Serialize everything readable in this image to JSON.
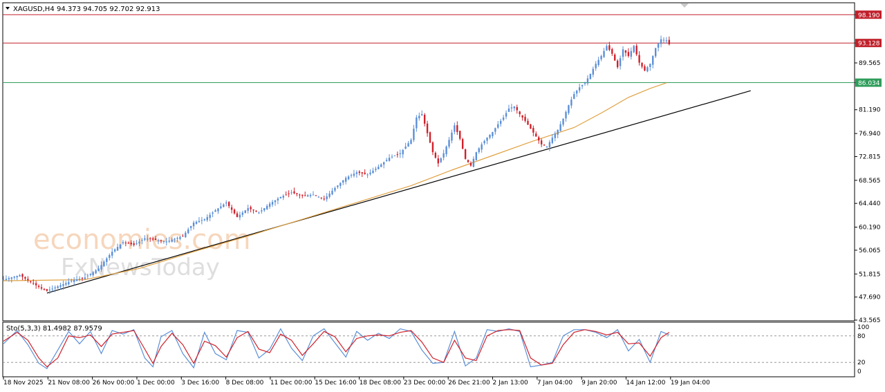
{
  "header": {
    "symbol": "XAGUSD,H4",
    "ohlc": "94.373 94.705 92.702 92.913"
  },
  "watermark": {
    "line1": "economies.com",
    "line2": "FxNewsToday"
  },
  "colors": {
    "bull": "#5b8fd6",
    "bear": "#d0202a",
    "ma": "#e0a040",
    "trend": "#000000",
    "resistance": "#c0202a",
    "support": "#2e9d5a",
    "stoch_main": "#5b8fd6",
    "stoch_signal": "#d0202a"
  },
  "chart_data": {
    "type": "candlestick",
    "symbol": "XAGUSD",
    "timeframe": "H4",
    "ylim": [
      43.565,
      100.2
    ],
    "y_ticks": [
      "98.190",
      "93.128",
      "89.565",
      "86.034",
      "81.190",
      "76.940",
      "72.815",
      "68.565",
      "64.440",
      "60.190",
      "56.065",
      "51.815",
      "47.690",
      "43.565"
    ],
    "x_ticks": [
      "18 Nov 2025",
      "21 Nov 08:00",
      "26 Nov 00:00",
      "1 Dec 00:00",
      "3 Dec 16:00",
      "8 Dec 08:00",
      "11 Dec 00:00",
      "15 Dec 16:00",
      "18 Dec 08:00",
      "23 Dec 00:00",
      "26 Dec 21:00",
      "2 Jan 13:00",
      "7 Jan 04:00",
      "9 Jan 20:00",
      "14 Jan 12:00",
      "19 Jan 04:00"
    ],
    "levels": [
      {
        "value": 98.19,
        "label": "98.190",
        "role": "resistance"
      },
      {
        "value": 93.128,
        "label": "93.128",
        "role": "resistance"
      },
      {
        "value": 86.034,
        "label": "86.034",
        "role": "support"
      }
    ],
    "close_path": [
      [
        0,
        50.8
      ],
      [
        6,
        51.6
      ],
      [
        10,
        50.4
      ],
      [
        14,
        49.2
      ],
      [
        16,
        48.8
      ],
      [
        20,
        49.6
      ],
      [
        25,
        50.6
      ],
      [
        30,
        51.2
      ],
      [
        35,
        52.8
      ],
      [
        40,
        55.8
      ],
      [
        44,
        57.5
      ],
      [
        48,
        57.0
      ],
      [
        52,
        58.2
      ],
      [
        56,
        57.9
      ],
      [
        60,
        57.6
      ],
      [
        66,
        58.6
      ],
      [
        70,
        61.0
      ],
      [
        74,
        61.6
      ],
      [
        78,
        63.2
      ],
      [
        82,
        64.6
      ],
      [
        86,
        62.0
      ],
      [
        90,
        63.6
      ],
      [
        94,
        62.8
      ],
      [
        98,
        64.4
      ],
      [
        102,
        65.6
      ],
      [
        106,
        66.4
      ],
      [
        110,
        65.8
      ],
      [
        114,
        66.0
      ],
      [
        118,
        65.2
      ],
      [
        122,
        67.2
      ],
      [
        126,
        69.0
      ],
      [
        130,
        70.0
      ],
      [
        134,
        69.6
      ],
      [
        138,
        71.0
      ],
      [
        142,
        72.6
      ],
      [
        146,
        73.4
      ],
      [
        150,
        75.8
      ],
      [
        152,
        79.8
      ],
      [
        154,
        80.4
      ],
      [
        156,
        77.0
      ],
      [
        158,
        73.6
      ],
      [
        160,
        71.6
      ],
      [
        162,
        73.4
      ],
      [
        164,
        75.8
      ],
      [
        166,
        78.4
      ],
      [
        168,
        76.0
      ],
      [
        170,
        72.4
      ],
      [
        172,
        71.2
      ],
      [
        174,
        73.6
      ],
      [
        176,
        75.0
      ],
      [
        178,
        76.2
      ],
      [
        180,
        77.2
      ],
      [
        182,
        78.6
      ],
      [
        184,
        79.8
      ],
      [
        186,
        81.4
      ],
      [
        188,
        81.8
      ],
      [
        190,
        80.4
      ],
      [
        192,
        79.2
      ],
      [
        194,
        77.8
      ],
      [
        196,
        76.4
      ],
      [
        198,
        75.0
      ],
      [
        200,
        74.6
      ],
      [
        202,
        76.2
      ],
      [
        204,
        77.6
      ],
      [
        206,
        79.6
      ],
      [
        208,
        82.0
      ],
      [
        210,
        84.0
      ],
      [
        212,
        85.2
      ],
      [
        214,
        86.0
      ],
      [
        216,
        87.6
      ],
      [
        218,
        89.4
      ],
      [
        220,
        90.8
      ],
      [
        222,
        92.6
      ],
      [
        224,
        91.2
      ],
      [
        226,
        88.8
      ],
      [
        228,
        92.0
      ],
      [
        230,
        90.8
      ],
      [
        232,
        92.6
      ],
      [
        234,
        89.6
      ],
      [
        236,
        88.2
      ],
      [
        238,
        89.4
      ],
      [
        240,
        92.2
      ],
      [
        242,
        93.8
      ],
      [
        244,
        93.6
      ],
      [
        245,
        92.9
      ]
    ],
    "ma_path": [
      [
        0,
        50.6
      ],
      [
        30,
        50.8
      ],
      [
        50,
        52.8
      ],
      [
        70,
        55.8
      ],
      [
        90,
        58.6
      ],
      [
        110,
        61.6
      ],
      [
        130,
        64.6
      ],
      [
        150,
        67.6
      ],
      [
        165,
        70.4
      ],
      [
        180,
        73.0
      ],
      [
        195,
        75.6
      ],
      [
        210,
        78.0
      ],
      [
        220,
        80.6
      ],
      [
        230,
        83.4
      ],
      [
        238,
        85.0
      ],
      [
        244,
        86.0
      ]
    ],
    "trendline": [
      [
        16,
        48.4
      ],
      [
        275,
        84.6
      ]
    ],
    "stochastic": {
      "label": "Sto(5,3,3) 81.4982 87.9579",
      "k": 81.4982,
      "d": 87.9579,
      "ylim": [
        0,
        100
      ],
      "y_ticks": [
        "100",
        "80",
        "20",
        "0"
      ],
      "levels": [
        80,
        20
      ],
      "main": [
        [
          0,
          62
        ],
        [
          5,
          92
        ],
        [
          9,
          60
        ],
        [
          13,
          18
        ],
        [
          16,
          6
        ],
        [
          20,
          48
        ],
        [
          24,
          90
        ],
        [
          28,
          62
        ],
        [
          32,
          90
        ],
        [
          36,
          40
        ],
        [
          40,
          92
        ],
        [
          44,
          84
        ],
        [
          48,
          94
        ],
        [
          52,
          30
        ],
        [
          55,
          10
        ],
        [
          58,
          78
        ],
        [
          62,
          92
        ],
        [
          66,
          40
        ],
        [
          70,
          8
        ],
        [
          74,
          88
        ],
        [
          78,
          40
        ],
        [
          82,
          26
        ],
        [
          86,
          92
        ],
        [
          90,
          88
        ],
        [
          94,
          30
        ],
        [
          98,
          50
        ],
        [
          102,
          96
        ],
        [
          106,
          52
        ],
        [
          110,
          24
        ],
        [
          114,
          80
        ],
        [
          118,
          96
        ],
        [
          122,
          64
        ],
        [
          126,
          32
        ],
        [
          130,
          90
        ],
        [
          134,
          70
        ],
        [
          138,
          86
        ],
        [
          142,
          74
        ],
        [
          146,
          96
        ],
        [
          150,
          90
        ],
        [
          154,
          48
        ],
        [
          158,
          18
        ],
        [
          162,
          20
        ],
        [
          166,
          90
        ],
        [
          170,
          12
        ],
        [
          174,
          30
        ],
        [
          178,
          94
        ],
        [
          182,
          90
        ],
        [
          186,
          96
        ],
        [
          190,
          90
        ],
        [
          194,
          10
        ],
        [
          198,
          14
        ],
        [
          202,
          20
        ],
        [
          206,
          80
        ],
        [
          210,
          94
        ],
        [
          214,
          94
        ],
        [
          218,
          88
        ],
        [
          222,
          76
        ],
        [
          226,
          94
        ],
        [
          230,
          46
        ],
        [
          234,
          72
        ],
        [
          238,
          20
        ],
        [
          242,
          90
        ],
        [
          245,
          82
        ]
      ],
      "signal": [
        [
          0,
          68
        ],
        [
          5,
          88
        ],
        [
          9,
          70
        ],
        [
          13,
          30
        ],
        [
          16,
          10
        ],
        [
          20,
          30
        ],
        [
          24,
          80
        ],
        [
          28,
          76
        ],
        [
          32,
          82
        ],
        [
          36,
          56
        ],
        [
          40,
          84
        ],
        [
          44,
          88
        ],
        [
          48,
          92
        ],
        [
          52,
          50
        ],
        [
          55,
          18
        ],
        [
          58,
          56
        ],
        [
          62,
          86
        ],
        [
          66,
          60
        ],
        [
          70,
          18
        ],
        [
          74,
          68
        ],
        [
          78,
          58
        ],
        [
          82,
          32
        ],
        [
          86,
          76
        ],
        [
          90,
          90
        ],
        [
          94,
          50
        ],
        [
          98,
          42
        ],
        [
          102,
          84
        ],
        [
          106,
          70
        ],
        [
          110,
          36
        ],
        [
          114,
          62
        ],
        [
          118,
          90
        ],
        [
          122,
          78
        ],
        [
          126,
          44
        ],
        [
          130,
          74
        ],
        [
          134,
          80
        ],
        [
          138,
          82
        ],
        [
          142,
          80
        ],
        [
          146,
          88
        ],
        [
          150,
          92
        ],
        [
          154,
          66
        ],
        [
          158,
          30
        ],
        [
          162,
          20
        ],
        [
          166,
          70
        ],
        [
          170,
          30
        ],
        [
          174,
          24
        ],
        [
          178,
          80
        ],
        [
          182,
          92
        ],
        [
          186,
          94
        ],
        [
          190,
          92
        ],
        [
          194,
          30
        ],
        [
          198,
          14
        ],
        [
          202,
          18
        ],
        [
          206,
          60
        ],
        [
          210,
          88
        ],
        [
          214,
          94
        ],
        [
          218,
          90
        ],
        [
          222,
          82
        ],
        [
          226,
          88
        ],
        [
          230,
          62
        ],
        [
          234,
          64
        ],
        [
          238,
          34
        ],
        [
          242,
          76
        ],
        [
          245,
          88
        ]
      ]
    }
  }
}
